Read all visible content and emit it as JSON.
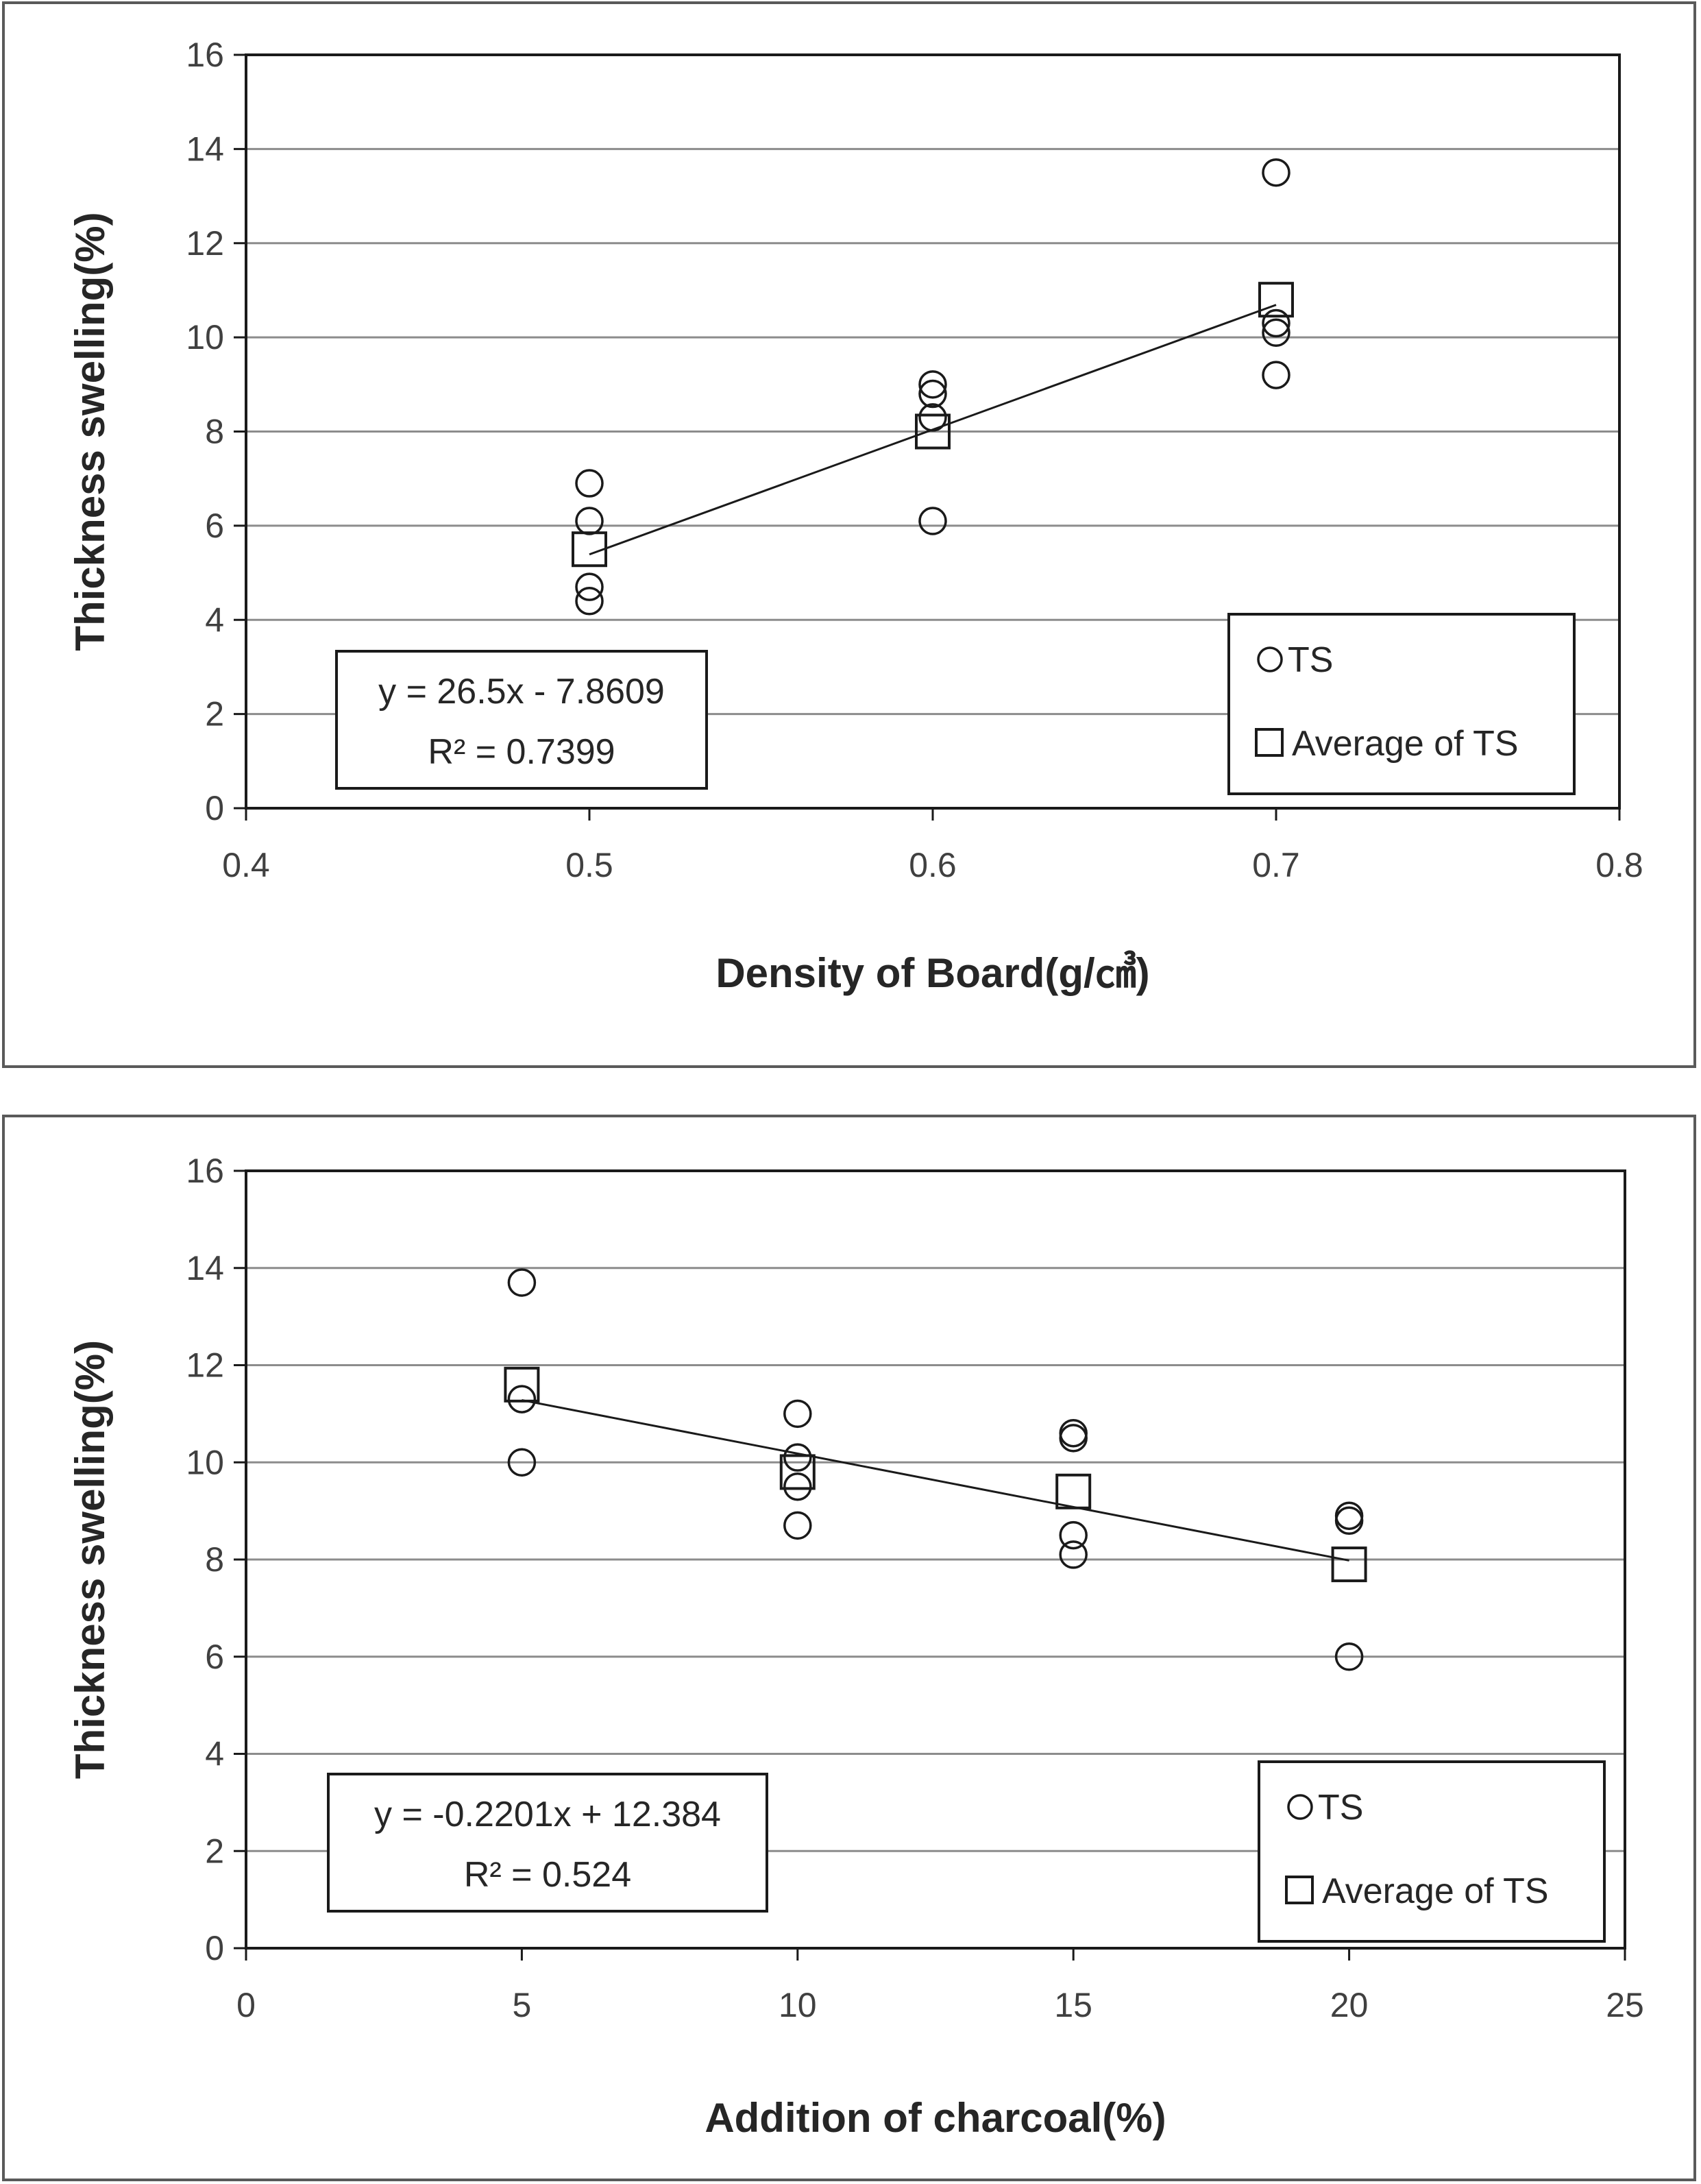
{
  "chart_data": [
    {
      "type": "scatter",
      "xlabel": "Density of Board(g/㎤)",
      "ylabel": "Thickness swelling(%)",
      "xlim": [
        0.4,
        0.8
      ],
      "ylim": [
        0,
        16
      ],
      "xticks": [
        0.4,
        0.5,
        0.6,
        0.7,
        0.8
      ],
      "xtick_labels": [
        "0.4",
        "0.5",
        "0.6",
        "0.7",
        "0.8"
      ],
      "yticks": [
        0,
        2,
        4,
        6,
        8,
        10,
        12,
        14,
        16
      ],
      "ytick_labels": [
        "0",
        "2",
        "4",
        "6",
        "8",
        "10",
        "12",
        "14",
        "16"
      ],
      "grid": "horizontal",
      "legend_position": "bottom-right",
      "series": [
        {
          "name": "TS",
          "marker": "circle",
          "x": [
            0.5,
            0.5,
            0.5,
            0.5,
            0.6,
            0.6,
            0.6,
            0.6,
            0.7,
            0.7,
            0.7,
            0.7
          ],
          "y": [
            6.9,
            6.1,
            4.7,
            4.4,
            9.0,
            8.8,
            8.3,
            6.1,
            13.5,
            10.3,
            10.1,
            9.2
          ]
        },
        {
          "name": "Average of TS",
          "marker": "square",
          "x": [
            0.5,
            0.6,
            0.7
          ],
          "y": [
            5.5,
            8.0,
            10.8
          ]
        }
      ],
      "trendline": {
        "x": [
          0.5,
          0.7
        ],
        "y": [
          5.39,
          10.69
        ]
      },
      "equation": "y = 26.5x - 7.8609",
      "r_squared": "R² = 0.7399",
      "equation_position": "bottom-left"
    },
    {
      "type": "scatter",
      "xlabel": "Addition of charcoal(%)",
      "ylabel": "Thickness swelling(%)",
      "xlim": [
        0,
        25
      ],
      "ylim": [
        0,
        16
      ],
      "xticks": [
        0,
        5,
        10,
        15,
        20,
        25
      ],
      "xtick_labels": [
        "0",
        "5",
        "10",
        "15",
        "20",
        "25"
      ],
      "yticks": [
        0,
        2,
        4,
        6,
        8,
        10,
        12,
        14,
        16
      ],
      "ytick_labels": [
        "0",
        "2",
        "4",
        "6",
        "8",
        "10",
        "12",
        "14",
        "16"
      ],
      "grid": "horizontal",
      "legend_position": "bottom-right",
      "series": [
        {
          "name": "TS",
          "marker": "circle",
          "x": [
            5,
            5,
            5,
            10,
            10,
            10,
            10,
            15,
            15,
            15,
            15,
            20,
            20,
            20
          ],
          "y": [
            13.7,
            11.3,
            10.0,
            11.0,
            10.1,
            9.5,
            8.7,
            10.6,
            10.5,
            8.5,
            8.1,
            8.9,
            8.8,
            6.0
          ]
        },
        {
          "name": "Average of TS",
          "marker": "square",
          "x": [
            5,
            10,
            15,
            20
          ],
          "y": [
            11.6,
            9.8,
            9.4,
            7.9
          ]
        }
      ],
      "trendline": {
        "x": [
          5,
          20
        ],
        "y": [
          11.28,
          7.98
        ]
      },
      "equation": "y = -0.2201x + 12.384",
      "r_squared": "R² = 0.524",
      "equation_position": "bottom-left"
    }
  ]
}
